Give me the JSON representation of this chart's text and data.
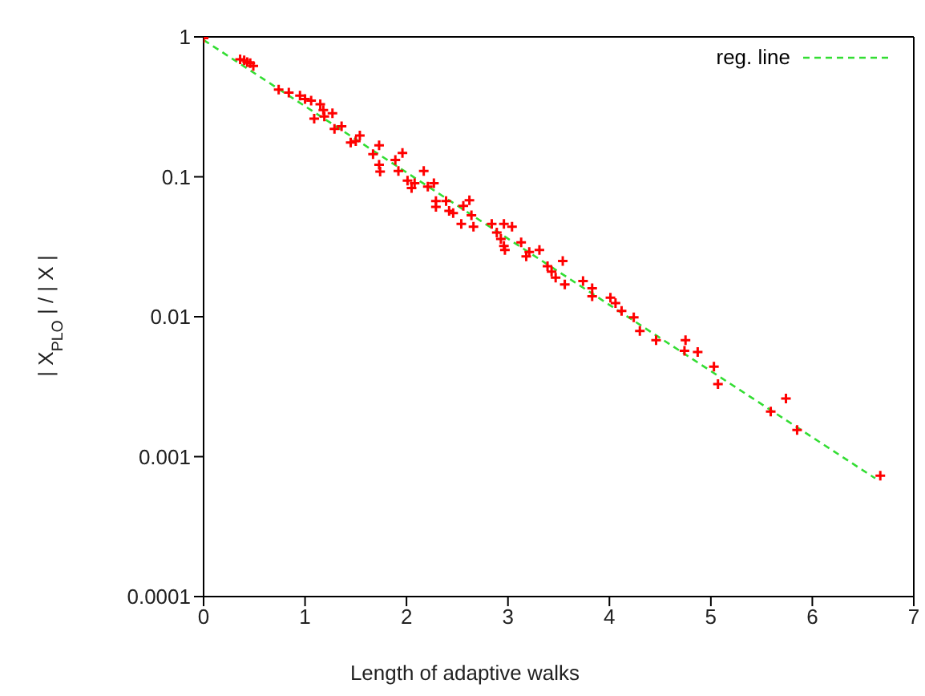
{
  "chart_data": {
    "type": "scatter",
    "xlabel": "Length of adaptive walks",
    "ylabel": "| X$_{PLO}$ | / | X |",
    "log": "y",
    "xlim": [
      0,
      7
    ],
    "xticks": [
      0,
      1,
      2,
      3,
      4,
      5,
      6,
      7
    ],
    "ylim": [
      0.0001,
      1
    ],
    "yticks": [
      0.0001,
      0.001,
      0.01,
      0.1,
      1
    ],
    "legend": "top right",
    "series": [
      {
        "color": "#ff0000",
        "marker": "cross",
        "x": [
          0,
          0.36,
          0.4,
          0.43,
          0.46,
          0.49,
          0.74,
          0.84,
          0.95,
          1.0,
          1.06,
          1.09,
          1.15,
          1.18,
          1.19,
          1.27,
          1.29,
          1.36,
          1.45,
          1.5,
          1.54,
          1.67,
          1.73,
          1.73,
          1.74,
          1.89,
          1.96,
          1.92,
          2.01,
          2.05,
          2.08,
          2.17,
          2.21,
          2.27,
          2.29,
          2.29,
          2.39,
          2.42,
          2.46,
          2.54,
          2.56,
          2.62,
          2.64,
          2.66,
          2.84,
          2.89,
          2.93,
          2.96,
          2.97,
          2.96,
          3.04,
          3.13,
          3.18,
          3.21,
          3.31,
          3.39,
          3.43,
          3.47,
          3.54,
          3.56,
          3.74,
          3.83,
          3.83,
          4.01,
          4.06,
          4.12,
          4.24,
          4.3,
          4.46,
          4.75,
          4.74,
          4.87,
          5.03,
          5.07,
          5.59,
          5.74,
          5.85,
          6.67
        ],
        "values": [
          0.98,
          0.69,
          0.68,
          0.66,
          0.65,
          0.62,
          0.42,
          0.4,
          0.38,
          0.36,
          0.35,
          0.26,
          0.33,
          0.3,
          0.27,
          0.285,
          0.22,
          0.23,
          0.176,
          0.18,
          0.197,
          0.145,
          0.168,
          0.122,
          0.109,
          0.132,
          0.148,
          0.11,
          0.094,
          0.083,
          0.09,
          0.11,
          0.085,
          0.09,
          0.067,
          0.061,
          0.067,
          0.057,
          0.055,
          0.046,
          0.062,
          0.068,
          0.053,
          0.044,
          0.046,
          0.04,
          0.036,
          0.032,
          0.03,
          0.046,
          0.044,
          0.034,
          0.027,
          0.029,
          0.03,
          0.023,
          0.021,
          0.019,
          0.025,
          0.017,
          0.018,
          0.016,
          0.014,
          0.0137,
          0.0125,
          0.011,
          0.0099,
          0.0079,
          0.0068,
          0.0068,
          0.0057,
          0.0056,
          0.0044,
          0.0033,
          0.0021,
          0.0026,
          0.00155,
          0.00073
        ]
      },
      {
        "type": "line",
        "name": "reg. line",
        "color": "#33dd33",
        "line_style": "dashed",
        "marker": "none",
        "x": [
          0,
          6.62
        ],
        "values": [
          0.95,
          0.0007
        ]
      }
    ]
  }
}
